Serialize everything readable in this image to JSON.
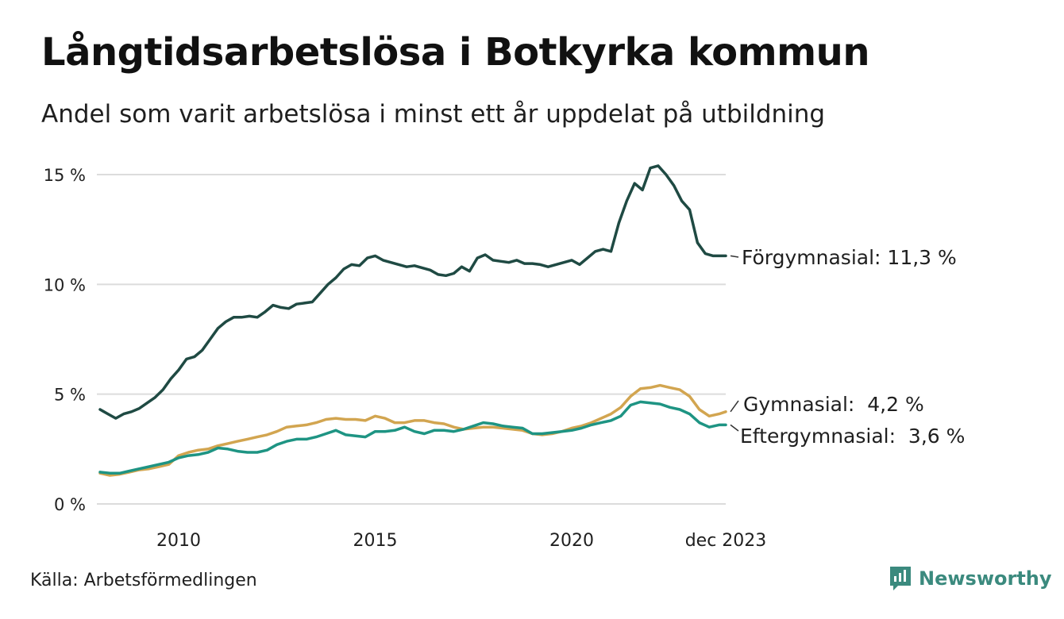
{
  "title": "Långtidsarbetslösa i Botkyrka kommun",
  "subtitle": "Andel som varit arbetslösa i minst ett år uppdelat på utbildning",
  "source": "Källa: Arbetsförmedlingen",
  "brand": "Newsworthy",
  "colors": {
    "forgymnasial": "#1f4a43",
    "gymnasial": "#d2a550",
    "eftergymnasial": "#1e9483",
    "grid": "#dcdcdc",
    "brand": "#3b8a7e"
  },
  "chart_data": {
    "type": "line",
    "title": "Långtidsarbetslösa i Botkyrka kommun",
    "xlabel": "",
    "ylabel": "",
    "xlim": [
      2008.0,
      2023.92
    ],
    "ylim": [
      0,
      15
    ],
    "grid": true,
    "x_ticks": [
      {
        "value": 2010,
        "label": "2010"
      },
      {
        "value": 2015,
        "label": "2015"
      },
      {
        "value": 2020,
        "label": "2020"
      },
      {
        "value": 2023.92,
        "label": "dec 2023"
      }
    ],
    "y_ticks": [
      {
        "value": 0,
        "label": "0 %"
      },
      {
        "value": 5,
        "label": "5 %"
      },
      {
        "value": 10,
        "label": "10 %"
      },
      {
        "value": 15,
        "label": "15 %"
      }
    ],
    "series": [
      {
        "key": "forgymnasial",
        "name": "Förgymnasial",
        "end_label": "Förgymnasial: 11,3 %",
        "x": [
          2008.0,
          2008.2,
          2008.4,
          2008.6,
          2008.8,
          2009.0,
          2009.2,
          2009.4,
          2009.6,
          2009.8,
          2010.0,
          2010.2,
          2010.4,
          2010.6,
          2010.8,
          2011.0,
          2011.2,
          2011.4,
          2011.6,
          2011.8,
          2012.0,
          2012.2,
          2012.4,
          2012.6,
          2012.8,
          2013.0,
          2013.2,
          2013.4,
          2013.6,
          2013.8,
          2014.0,
          2014.2,
          2014.4,
          2014.6,
          2014.8,
          2015.0,
          2015.2,
          2015.4,
          2015.6,
          2015.8,
          2016.0,
          2016.2,
          2016.4,
          2016.6,
          2016.8,
          2017.0,
          2017.2,
          2017.4,
          2017.6,
          2017.8,
          2018.0,
          2018.2,
          2018.4,
          2018.6,
          2018.8,
          2019.0,
          2019.2,
          2019.4,
          2019.6,
          2019.8,
          2020.0,
          2020.2,
          2020.4,
          2020.6,
          2020.8,
          2021.0,
          2021.2,
          2021.4,
          2021.6,
          2021.8,
          2022.0,
          2022.2,
          2022.4,
          2022.6,
          2022.8,
          2023.0,
          2023.2,
          2023.4,
          2023.6,
          2023.92
        ],
        "values": [
          4.3,
          4.1,
          3.9,
          4.1,
          4.2,
          4.35,
          4.6,
          4.85,
          5.2,
          5.7,
          6.1,
          6.6,
          6.7,
          7.0,
          7.5,
          8.0,
          8.3,
          8.5,
          8.5,
          8.55,
          8.5,
          8.75,
          9.05,
          8.95,
          8.9,
          9.1,
          9.15,
          9.2,
          9.6,
          10.0,
          10.3,
          10.7,
          10.9,
          10.85,
          11.2,
          11.3,
          11.1,
          11.0,
          10.9,
          10.8,
          10.85,
          10.75,
          10.65,
          10.45,
          10.4,
          10.5,
          10.8,
          10.6,
          11.2,
          11.35,
          11.1,
          11.05,
          11.0,
          11.1,
          10.95,
          10.95,
          10.9,
          10.8,
          10.9,
          11.0,
          11.1,
          10.9,
          11.2,
          11.5,
          11.6,
          11.5,
          12.8,
          13.8,
          14.6,
          14.3,
          15.3,
          15.4,
          15.0,
          14.5,
          13.8,
          13.4,
          11.9,
          11.4,
          11.3,
          11.3
        ]
      },
      {
        "key": "gymnasial",
        "name": "Gymnasial",
        "end_label": "Gymnasial:  4,2 %",
        "x": [
          2008.0,
          2008.25,
          2008.5,
          2008.75,
          2009.0,
          2009.25,
          2009.5,
          2009.75,
          2010.0,
          2010.25,
          2010.5,
          2010.75,
          2011.0,
          2011.25,
          2011.5,
          2011.75,
          2012.0,
          2012.25,
          2012.5,
          2012.75,
          2013.0,
          2013.25,
          2013.5,
          2013.75,
          2014.0,
          2014.25,
          2014.5,
          2014.75,
          2015.0,
          2015.25,
          2015.5,
          2015.75,
          2016.0,
          2016.25,
          2016.5,
          2016.75,
          2017.0,
          2017.25,
          2017.5,
          2017.75,
          2018.0,
          2018.25,
          2018.5,
          2018.75,
          2019.0,
          2019.25,
          2019.5,
          2019.75,
          2020.0,
          2020.25,
          2020.5,
          2020.75,
          2021.0,
          2021.25,
          2021.5,
          2021.75,
          2022.0,
          2022.25,
          2022.5,
          2022.75,
          2023.0,
          2023.25,
          2023.5,
          2023.75,
          2023.92
        ],
        "values": [
          1.4,
          1.3,
          1.35,
          1.45,
          1.55,
          1.6,
          1.7,
          1.8,
          2.2,
          2.35,
          2.45,
          2.5,
          2.65,
          2.75,
          2.85,
          2.95,
          3.05,
          3.15,
          3.3,
          3.5,
          3.55,
          3.6,
          3.7,
          3.85,
          3.9,
          3.85,
          3.85,
          3.8,
          4.0,
          3.9,
          3.7,
          3.7,
          3.8,
          3.8,
          3.7,
          3.65,
          3.5,
          3.4,
          3.45,
          3.5,
          3.5,
          3.45,
          3.4,
          3.35,
          3.2,
          3.15,
          3.2,
          3.3,
          3.45,
          3.55,
          3.7,
          3.9,
          4.1,
          4.4,
          4.9,
          5.25,
          5.3,
          5.4,
          5.3,
          5.2,
          4.9,
          4.3,
          4.0,
          4.1,
          4.2
        ]
      },
      {
        "key": "eftergymnasial",
        "name": "Eftergymnasial",
        "end_label": "Eftergymnasial:  3,6 %",
        "x": [
          2008.0,
          2008.25,
          2008.5,
          2008.75,
          2009.0,
          2009.25,
          2009.5,
          2009.75,
          2010.0,
          2010.25,
          2010.5,
          2010.75,
          2011.0,
          2011.25,
          2011.5,
          2011.75,
          2012.0,
          2012.25,
          2012.5,
          2012.75,
          2013.0,
          2013.25,
          2013.5,
          2013.75,
          2014.0,
          2014.25,
          2014.5,
          2014.75,
          2015.0,
          2015.25,
          2015.5,
          2015.75,
          2016.0,
          2016.25,
          2016.5,
          2016.75,
          2017.0,
          2017.25,
          2017.5,
          2017.75,
          2018.0,
          2018.25,
          2018.5,
          2018.75,
          2019.0,
          2019.25,
          2019.5,
          2019.75,
          2020.0,
          2020.25,
          2020.5,
          2020.75,
          2021.0,
          2021.25,
          2021.5,
          2021.75,
          2022.0,
          2022.25,
          2022.5,
          2022.75,
          2023.0,
          2023.25,
          2023.5,
          2023.75,
          2023.92
        ],
        "values": [
          1.45,
          1.4,
          1.4,
          1.5,
          1.6,
          1.7,
          1.8,
          1.9,
          2.1,
          2.2,
          2.25,
          2.35,
          2.55,
          2.5,
          2.4,
          2.35,
          2.35,
          2.45,
          2.7,
          2.85,
          2.95,
          2.95,
          3.05,
          3.2,
          3.35,
          3.15,
          3.1,
          3.05,
          3.3,
          3.3,
          3.35,
          3.5,
          3.3,
          3.2,
          3.35,
          3.35,
          3.3,
          3.4,
          3.55,
          3.7,
          3.65,
          3.55,
          3.5,
          3.45,
          3.2,
          3.2,
          3.25,
          3.3,
          3.35,
          3.45,
          3.6,
          3.7,
          3.8,
          4.0,
          4.5,
          4.65,
          4.6,
          4.55,
          4.4,
          4.3,
          4.1,
          3.7,
          3.5,
          3.6,
          3.6
        ]
      }
    ]
  }
}
